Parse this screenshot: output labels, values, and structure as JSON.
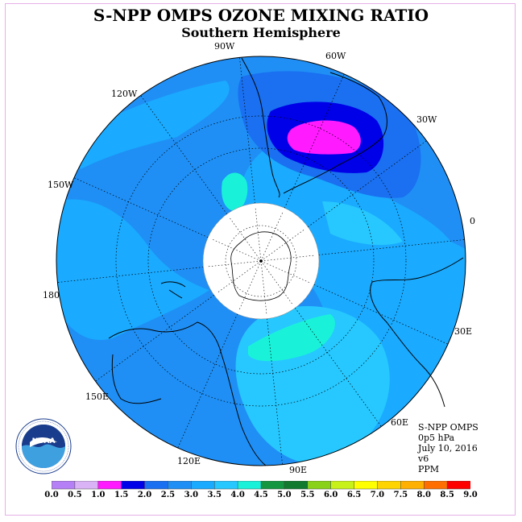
{
  "title": "S-NPP OMPS OZONE MIXING RATIO",
  "subtitle": "Southern Hemisphere",
  "longitude_labels": [
    "90W",
    "60W",
    "30W",
    "0",
    "30E",
    "60E",
    "90E",
    "120E",
    "150E",
    "180",
    "150W",
    "120W"
  ],
  "info": {
    "instrument": "S-NPP OMPS",
    "pressure_level": "0p5 hPa",
    "date": "July 10, 2016",
    "version": "v6",
    "units": "PPM"
  },
  "colorbar": {
    "ticks": [
      "0.0",
      "0.5",
      "1.0",
      "1.5",
      "2.0",
      "2.5",
      "3.0",
      "3.5",
      "4.0",
      "4.5",
      "5.0",
      "5.5",
      "6.0",
      "6.5",
      "7.0",
      "7.5",
      "8.0",
      "8.5",
      "9.0"
    ],
    "colors": [
      "#b57ff5",
      "#d9b3f5",
      "#ff1aff",
      "#0000e8",
      "#1a70f0",
      "#1f8ff5",
      "#1aaaff",
      "#26c8ff",
      "#19f2d9",
      "#149640",
      "#117a2e",
      "#8ad119",
      "#c8f019",
      "#ffff00",
      "#ffd400",
      "#ffb000",
      "#ff6e00",
      "#ff0000",
      "#8c5a3c"
    ]
  },
  "field_colors": {
    "background_level": "#1f8ff5",
    "mid_level": "#1aaaff",
    "high_level": "#26c8ff",
    "peak_level": "#19f2d9",
    "low_level": "#1a70f0",
    "min_level": "#0000e8",
    "extreme_min": "#ff1aff"
  },
  "logo": {
    "text": "NOAA",
    "ring_text": "NATIONAL OCEANIC AND ATMOSPHERIC ADMINISTRATION · U.S. DEPARTMENT OF COMMERCE"
  }
}
